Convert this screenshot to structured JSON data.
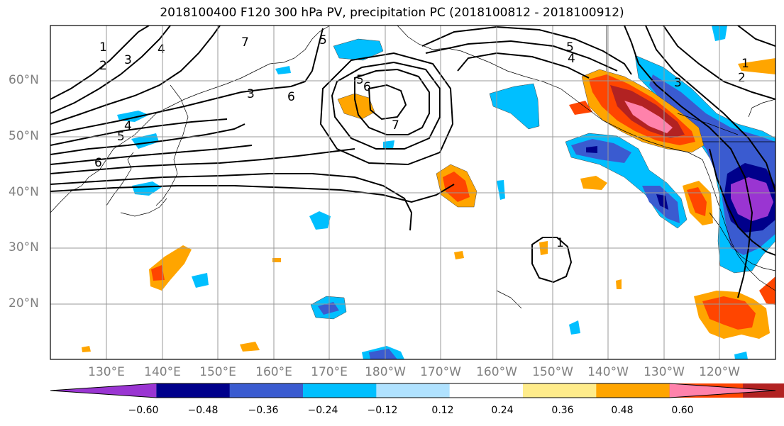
{
  "title": "2018100400 F120 300 hPa PV, precipitation PC (2018100812 - 2018100912)",
  "lat_labels": [
    "60°N",
    "50°N",
    "40°N",
    "30°N",
    "20°N"
  ],
  "lon_labels": [
    "130°E",
    "140°E",
    "150°E",
    "160°E",
    "170°E",
    "180°W",
    "170°W",
    "160°W",
    "150°W",
    "140°W",
    "130°W",
    "120°W"
  ],
  "colorbar": {
    "colors": [
      "#9a35d2",
      "#00008b",
      "#3a5bd0",
      "#00bfff",
      "#b0e2ff",
      "#ffffff",
      "#ffec8b",
      "#ffa500",
      "#ff4500",
      "#b22222",
      "#ff82ab"
    ],
    "tick_labels": [
      "−0.60",
      "−0.48",
      "−0.36",
      "−0.24",
      "−0.12",
      "0.12",
      "0.24",
      "0.36",
      "0.48",
      "0.60"
    ]
  },
  "contour_labels": [
    "1",
    "2",
    "3",
    "4",
    "5",
    "6",
    "7",
    "6",
    "5",
    "4",
    "3",
    "5",
    "6",
    "7",
    "5",
    "4",
    "3",
    "1",
    "2",
    "1"
  ]
}
